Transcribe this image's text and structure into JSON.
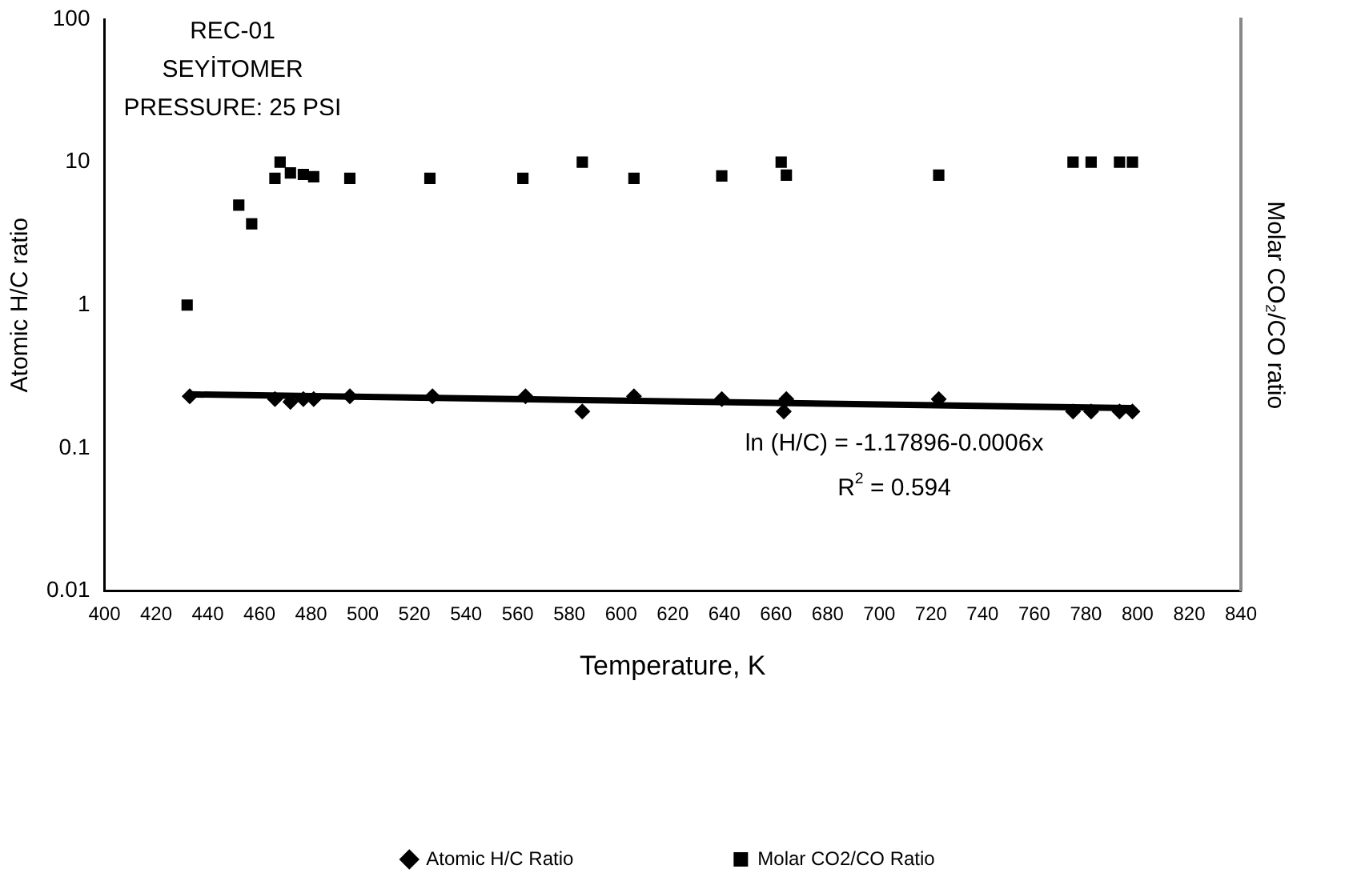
{
  "chart_data": {
    "type": "scatter",
    "xlabel": "Temperature, K",
    "ylabel": "Atomic H/C ratio",
    "y2label": "Molar CO₂/CO ratio",
    "log": "y",
    "xlim": [
      400,
      840
    ],
    "xticks": [
      400,
      420,
      440,
      460,
      480,
      500,
      520,
      540,
      560,
      580,
      600,
      620,
      640,
      660,
      680,
      700,
      720,
      740,
      760,
      780,
      800,
      820,
      840
    ],
    "ylim": [
      0.01,
      100
    ],
    "yticks": [
      0.01,
      0.1,
      1,
      10,
      100
    ],
    "grid": false,
    "legend": "bottom",
    "annotations": [
      "REC-01",
      "SEYİTOMER",
      "PRESSURE: 25 PSI",
      "ln (H/C) = -1.17896-0.0006x",
      "R$^{2}$ = 0.594"
    ],
    "series": [
      {
        "name": "Atomic H/C Ratio",
        "color": "#000000",
        "marker": "diamond",
        "x": [
          433,
          466,
          472,
          477,
          481,
          495,
          527,
          563,
          585,
          605,
          639,
          663,
          664,
          723,
          775,
          782,
          793,
          798
        ],
        "values": [
          0.23,
          0.22,
          0.21,
          0.22,
          0.22,
          0.23,
          0.23,
          0.23,
          0.18,
          0.23,
          0.22,
          0.18,
          0.22,
          0.22,
          0.18,
          0.18,
          0.18,
          0.18
        ]
      },
      {
        "name": "Molar CO2/CO Ratio",
        "color": "#000000",
        "marker": "square",
        "x": [
          432,
          452,
          457,
          466,
          468,
          472,
          477,
          481,
          495,
          526,
          562,
          585,
          605,
          639,
          662,
          664,
          723,
          775,
          782,
          793,
          798
        ],
        "values": [
          1.0,
          5,
          3.7,
          7.7,
          10,
          8.4,
          8.2,
          7.9,
          7.7,
          7.7,
          7.7,
          10,
          7.7,
          8,
          10,
          8.1,
          8.1,
          10,
          10,
          10,
          10
        ]
      },
      {
        "type": "line",
        "color": "#000000",
        "marker": "none",
        "x": [
          433,
          798
        ],
        "values": [
          0.237,
          0.19
        ]
      }
    ]
  }
}
